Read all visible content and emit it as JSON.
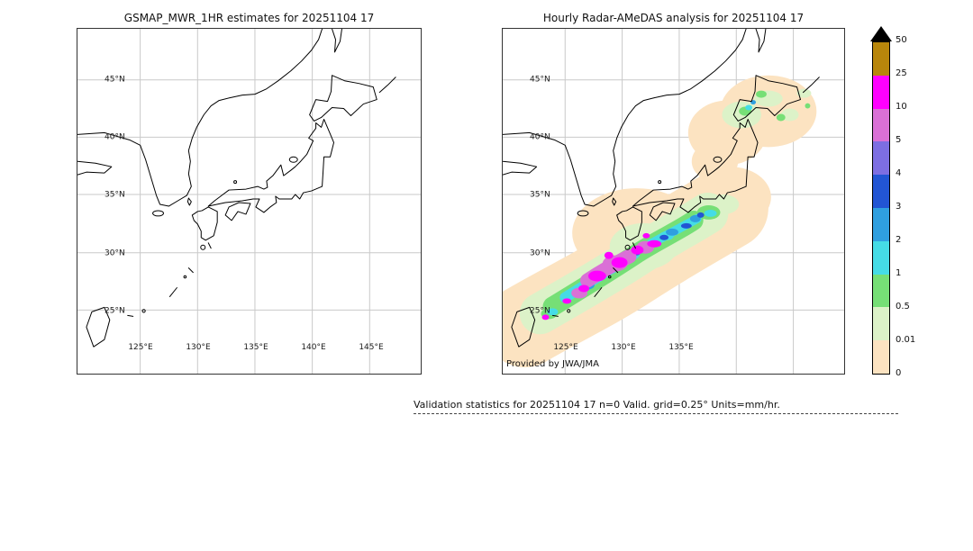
{
  "panels": {
    "left": {
      "title": "GSMAP_MWR_1HR estimates for 20251104 17",
      "lat_ticks": [
        "45°N",
        "40°N",
        "35°N",
        "30°N",
        "25°N"
      ],
      "lon_ticks": [
        "125°E",
        "130°E",
        "135°E",
        "140°E",
        "145°E"
      ]
    },
    "right": {
      "title": "Hourly Radar-AMeDAS analysis for 20251104 17",
      "lat_ticks": [
        "45°N",
        "40°N",
        "35°N",
        "30°N",
        "25°N"
      ],
      "lon_ticks": [
        "125°E",
        "130°E",
        "135°E"
      ],
      "credit": "Provided by JWA/JMA"
    }
  },
  "colorbar": {
    "ticks": [
      "50",
      "25",
      "10",
      "5",
      "4",
      "3",
      "2",
      "1",
      "0.5",
      "0.01",
      "0"
    ],
    "overflow_color": "#000000",
    "segments": [
      {
        "range": "25-50",
        "color": "#b8860b"
      },
      {
        "range": "10-25",
        "color": "#ff00ff"
      },
      {
        "range": "5-10",
        "color": "#da70d6"
      },
      {
        "range": "4-5",
        "color": "#7d6ee2"
      },
      {
        "range": "3-4",
        "color": "#2255d4"
      },
      {
        "range": "2-3",
        "color": "#2f9fe0"
      },
      {
        "range": "1-2",
        "color": "#45dce6"
      },
      {
        "range": "0.5-1",
        "color": "#76df76"
      },
      {
        "range": "0.01-0.5",
        "color": "#dcf2c8"
      },
      {
        "range": "0-0.01",
        "color": "#fce3c1"
      }
    ]
  },
  "footer": {
    "text": "Validation statistics for 20251104 17  n=0 Valid. grid=0.25° Units=mm/hr."
  },
  "chart_data": [
    {
      "type": "heatmap",
      "title": "GSMAP_MWR_1HR estimates for 20251104 17",
      "projection": "lat-lon map of Japan region",
      "lon_range": [
        120,
        150
      ],
      "lat_range": [
        20,
        49
      ],
      "x_ticks": [
        "125°E",
        "130°E",
        "135°E",
        "140°E",
        "145°E"
      ],
      "y_ticks": [
        "45°N",
        "40°N",
        "35°N",
        "30°N",
        "25°N"
      ],
      "units": "mm/hr",
      "grid": true,
      "values": "no precipitation estimates plotted (n=0 valid grid points)"
    },
    {
      "type": "heatmap",
      "title": "Hourly Radar-AMeDAS analysis for 20251104 17",
      "projection": "lat-lon map of Japan region",
      "lon_range": [
        120,
        150
      ],
      "lat_range": [
        20,
        49
      ],
      "x_ticks": [
        "125°E",
        "130°E",
        "135°E"
      ],
      "y_ticks": [
        "45°N",
        "40°N",
        "35°N",
        "30°N",
        "25°N"
      ],
      "units": "mm/hr",
      "grid": true,
      "levels_mm_hr": [
        0,
        0.01,
        0.5,
        1,
        2,
        3,
        4,
        5,
        10,
        25,
        50
      ],
      "level_colors_low_to_high": [
        "#fce3c1",
        "#dcf2c8",
        "#76df76",
        "#45dce6",
        "#2f9fe0",
        "#2255d4",
        "#7d6ee2",
        "#da70d6",
        "#ff00ff",
        "#b8860b"
      ],
      "regions": [
        {
          "area": "broad SW-NE band from Okinawa/Amami islands through Kyushu and Shikoku to Kinki/Tokai/Kanto",
          "intensity": "trace to 2 mm/hr (peach/pale green/green)"
        },
        {
          "area": "East China Sea to Kyushu, ~27-32N 126-131E",
          "intensity": "embedded heavy cells 5 to >10 mm/hr (orchid/magenta cluster)"
        },
        {
          "area": "Shikoku to Kii peninsula coast, ~33-34N 133-136E",
          "intensity": "2-5 mm/hr cells (cyan/blue/purple)"
        },
        {
          "area": "Hokkaido and northern Tohoku",
          "intensity": "trace to 1 mm/hr (peach/pale green) with small 1-4 mm/hr cells near west Hokkaido coast"
        }
      ],
      "credit": "Provided by JWA/JMA"
    }
  ]
}
